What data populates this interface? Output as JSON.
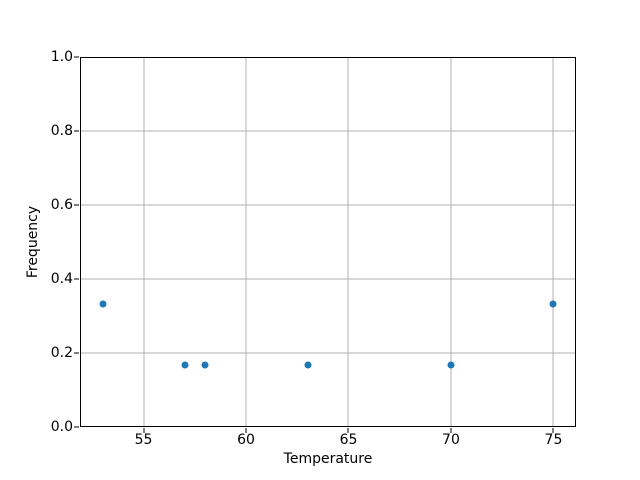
{
  "chart_data": {
    "type": "scatter",
    "title": "",
    "xlabel": "Temperature",
    "ylabel": "Frequency",
    "points": [
      {
        "x": 53,
        "y": 0.333
      },
      {
        "x": 57,
        "y": 0.167
      },
      {
        "x": 58,
        "y": 0.167
      },
      {
        "x": 63,
        "y": 0.167
      },
      {
        "x": 70,
        "y": 0.167
      },
      {
        "x": 75,
        "y": 0.333
      }
    ],
    "xlim": [
      51.9,
      76.1
    ],
    "ylim": [
      0.0,
      1.0
    ],
    "xticks": [
      55,
      60,
      65,
      70,
      75
    ],
    "xtick_labels": [
      "55",
      "60",
      "65",
      "70",
      "75"
    ],
    "yticks": [
      0.0,
      0.2,
      0.4,
      0.6,
      0.8,
      1.0
    ],
    "ytick_labels": [
      "0.0",
      "0.2",
      "0.4",
      "0.6",
      "0.8",
      "1.0"
    ],
    "grid": true,
    "legend_position": "none",
    "marker_color": "#1f77b4",
    "grid_color": "#b0b0b0",
    "spine_color": "#000000",
    "background_color": "#ffffff",
    "text_color": "#000000"
  }
}
